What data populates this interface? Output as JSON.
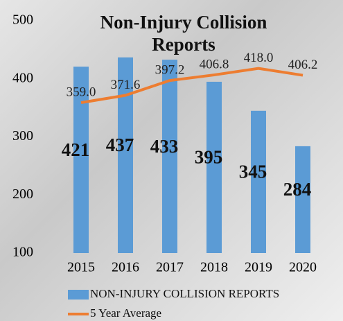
{
  "chart_data": {
    "type": "bar",
    "title": "Non-Injury Collision Reports",
    "categories": [
      "2015",
      "2016",
      "2017",
      "2018",
      "2019",
      "2020"
    ],
    "series": [
      {
        "name": "NON-INJURY COLLISION REPORTS",
        "color": "#5b9bd5",
        "type": "bar",
        "values": [
          421,
          437,
          433,
          395,
          345,
          284
        ]
      },
      {
        "name": "5 Year Average",
        "color": "#ed7d31",
        "type": "line",
        "values": [
          359.0,
          371.6,
          397.2,
          406.8,
          418.0,
          406.2
        ],
        "value_labels": [
          "359.0",
          "371.6",
          "397.2",
          "406.8",
          "418.0",
          "406.2"
        ]
      }
    ],
    "ylim": [
      100,
      500
    ],
    "yticks": [
      100,
      200,
      300,
      400,
      500
    ],
    "grid": false
  }
}
